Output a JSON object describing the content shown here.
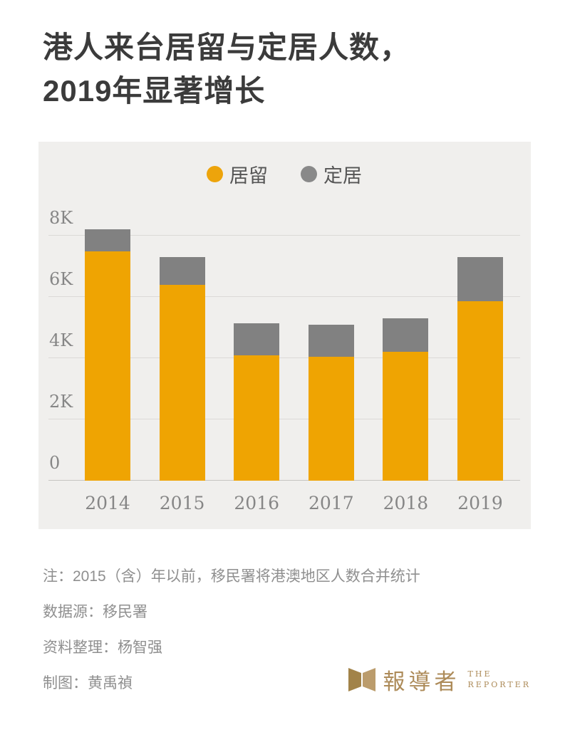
{
  "title": {
    "line1": "港人来台居留与定居人数，",
    "line2": "2019年显著增长"
  },
  "legend": [
    {
      "label": "居留",
      "color": "#eda40b"
    },
    {
      "label": "定居",
      "color": "#898989"
    }
  ],
  "chart_data": {
    "type": "bar",
    "stacked": true,
    "categories": [
      "2014",
      "2015",
      "2016",
      "2017",
      "2018",
      "2019"
    ],
    "series": [
      {
        "name": "居留",
        "color": "#efa402",
        "values": [
          7500,
          6400,
          4100,
          4050,
          4200,
          5850
        ]
      },
      {
        "name": "定居",
        "color": "#818181",
        "values": [
          700,
          900,
          1050,
          1050,
          1100,
          1450
        ]
      }
    ],
    "title": "港人来台居留与定居人数，2019年显著增长",
    "xlabel": "",
    "ylabel": "",
    "ylim": [
      0,
      8600
    ],
    "yticks": [
      {
        "value": 0,
        "label": "0"
      },
      {
        "value": 2000,
        "label": "2K"
      },
      {
        "value": 4000,
        "label": "4K"
      },
      {
        "value": 6000,
        "label": "6K"
      },
      {
        "value": 8000,
        "label": "8K"
      }
    ],
    "grid": true,
    "legend_position": "top-center"
  },
  "notes": [
    "注：2015（含）年以前，移民署将港澳地区人数合并统计",
    "数据源：移民署",
    "资料整理：杨智强",
    "制图：黄禹禎"
  ],
  "logo": {
    "cjk": "報導者",
    "en_line1": "THE",
    "en_line2": "REPORTER",
    "color": "#ad8b59",
    "icon_color_left": "#a28349",
    "icon_color_right": "#bb9c6c"
  }
}
